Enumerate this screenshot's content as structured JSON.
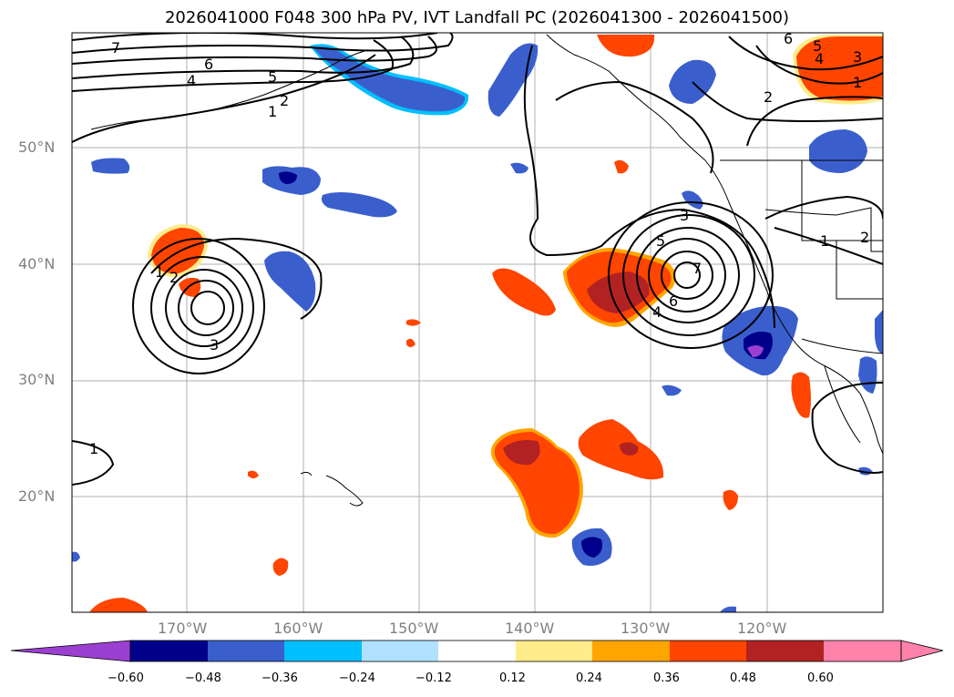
{
  "title": "2026041000 F048 300 hPa PV, IVT Landfall PC (2026041300 - 2026041500)",
  "lat_labels": [
    "50°N",
    "40°N",
    "30°N",
    "20°N"
  ],
  "lon_labels": [
    "170°W",
    "160°W",
    "150°W",
    "140°W",
    "130°W",
    "120°W"
  ],
  "contour_labels": [
    "7",
    "6",
    "5",
    "4",
    "2",
    "1",
    "6",
    "5",
    "4",
    "3",
    "1",
    "2",
    "3",
    "5",
    "6",
    "7",
    "4",
    "1",
    "2",
    "2",
    "1",
    "3",
    "1"
  ],
  "colorbar": {
    "ticks": [
      "−0.60",
      "−0.48",
      "−0.36",
      "−0.24",
      "−0.12",
      "0.12",
      "0.24",
      "0.36",
      "0.48",
      "0.60"
    ],
    "colors": {
      "under": "#9b3fd1",
      "neg_060": "#00008b",
      "neg_048": "#3a5fcd",
      "neg_036": "#00bfff",
      "neg_024": "#b0e2ff",
      "neutral": "#ffffff",
      "pos_012": "#ffec8b",
      "pos_024": "#ffa500",
      "pos_036": "#ff4500",
      "pos_048": "#b22222",
      "over": "#ff82ab"
    }
  }
}
